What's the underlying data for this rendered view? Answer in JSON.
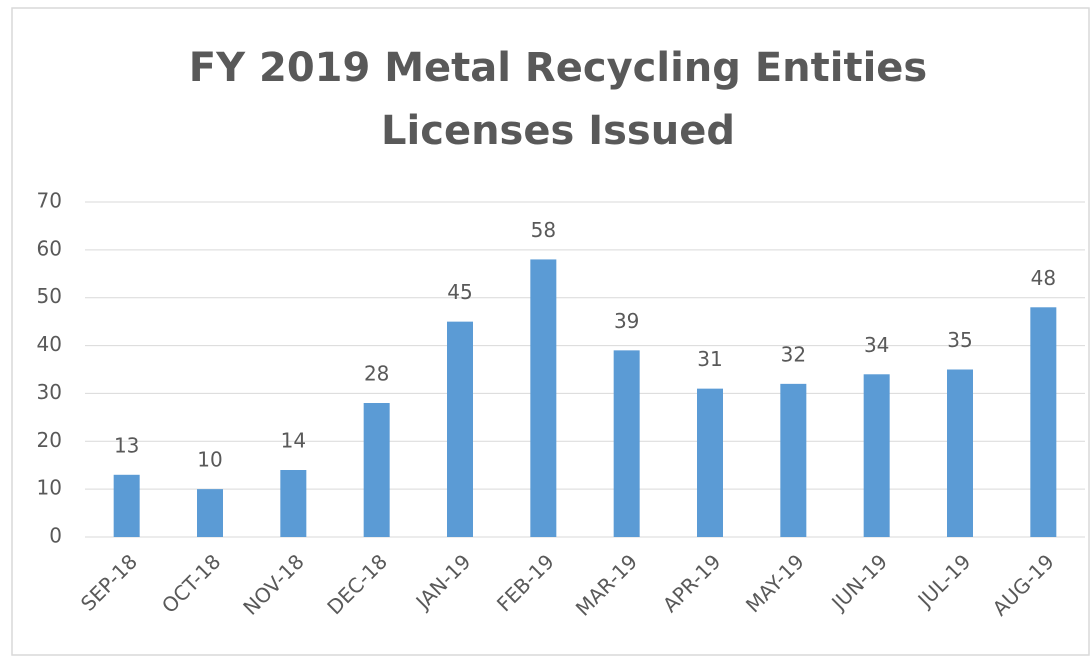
{
  "chart_data": {
    "type": "bar",
    "title": [
      "FY 2019 Metal Recycling Entities",
      "Licenses Issued"
    ],
    "categories": [
      "SEP-18",
      "OCT-18",
      "NOV-18",
      "DEC-18",
      "JAN-19",
      "FEB-19",
      "MAR-19",
      "APR-19",
      "MAY-19",
      "JUN-19",
      "JUL-19",
      "AUG-19"
    ],
    "values": [
      13,
      10,
      14,
      28,
      45,
      58,
      39,
      31,
      32,
      34,
      35,
      48
    ],
    "color": "#5b9bd5",
    "ylim": [
      0,
      70
    ],
    "yticks": [
      0,
      10,
      20,
      30,
      40,
      50,
      60,
      70
    ],
    "grid": true
  }
}
